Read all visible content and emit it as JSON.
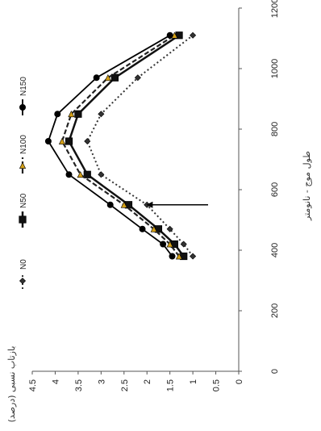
{
  "chart_data": {
    "type": "line",
    "orientation": "rotated-90-clockwise",
    "xlabel": "طول موج - نانومتر",
    "ylabel": "بازتاب نسبی (درصد)",
    "xlim": [
      0,
      1200
    ],
    "ylim": [
      0,
      4.5
    ],
    "x_ticks": [
      "0",
      "200",
      "400",
      "600",
      "800",
      "1000",
      "1200"
    ],
    "y_ticks": [
      "0",
      "0.5",
      "1",
      "1.5",
      "2",
      "2.5",
      "3",
      "3.5",
      "4",
      "4.5"
    ],
    "grid": false,
    "legend_position": "top",
    "annotation": "arrow pointing to the N0 series near 550",
    "series": [
      {
        "name": "N0",
        "x": [
          380,
          420,
          470,
          550,
          650,
          760,
          850,
          970,
          1110
        ],
        "y": [
          1.0,
          1.2,
          1.5,
          2.0,
          3.0,
          3.3,
          3.0,
          2.2,
          1.0
        ]
      },
      {
        "name": "N50",
        "x": [
          380,
          420,
          470,
          550,
          650,
          760,
          850,
          970,
          1110
        ],
        "y": [
          1.2,
          1.4,
          1.75,
          2.4,
          3.3,
          3.7,
          3.5,
          2.7,
          1.3
        ]
      },
      {
        "name": "N100",
        "x": [
          380,
          420,
          470,
          550,
          650,
          760,
          850,
          970,
          1110
        ],
        "y": [
          1.3,
          1.5,
          1.85,
          2.5,
          3.45,
          3.85,
          3.65,
          2.85,
          1.4
        ]
      },
      {
        "name": "N150",
        "x": [
          380,
          420,
          470,
          550,
          650,
          760,
          850,
          970,
          1110
        ],
        "y": [
          1.45,
          1.65,
          2.1,
          2.8,
          3.7,
          4.15,
          3.95,
          3.1,
          1.5
        ]
      }
    ]
  }
}
